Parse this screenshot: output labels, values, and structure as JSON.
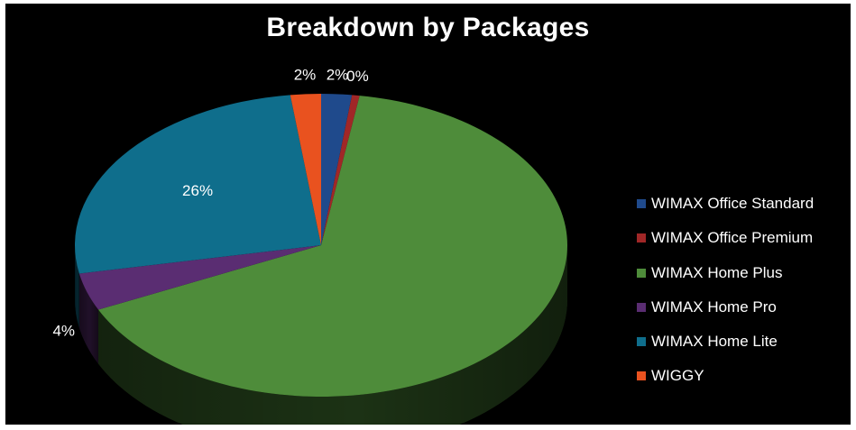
{
  "chart_data": {
    "type": "pie",
    "title": "Breakdown by Packages",
    "three_d": true,
    "legend_position": "right",
    "categories": [
      "WIMAX Office Standard",
      "WIMAX Office Premium",
      "WIMAX Home Plus",
      "WIMAX Home Pro",
      "WIMAX Home Lite",
      "WIGGY"
    ],
    "values": [
      2,
      0.5,
      65.5,
      4,
      26,
      2
    ],
    "data_labels": [
      "2%",
      "0%",
      "",
      "4%",
      "26%",
      "2%"
    ],
    "colors": [
      "#1f4a8c",
      "#a02727",
      "#4e8c3a",
      "#5a2d72",
      "#0f6e8c",
      "#e9521f"
    ]
  }
}
